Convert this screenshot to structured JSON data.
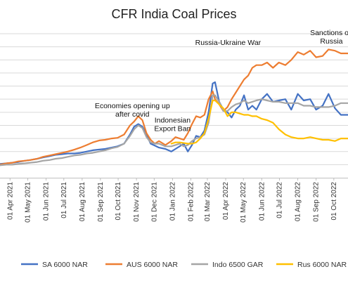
{
  "chart_data": {
    "type": "line",
    "title": "CFR India Coal Prices",
    "xlabel": "",
    "ylabel": "",
    "grid": true,
    "legend_position": "bottom",
    "x_range": [
      "2021-03-15",
      "2022-10-25"
    ],
    "x_tick_labels": [
      "01 Apr 2021",
      "01 May 2021",
      "01 Jun 2021",
      "01 Jul 2021",
      "01 Aug 2021",
      "01 Sep 2021",
      "01 Oct 2021",
      "01 Nov 2021",
      "01 Dec 2021",
      "01 Jan 2022",
      "01 Feb 2022",
      "01 Mar 2022",
      "01 Apr 2022",
      "01 May 2022",
      "01 Jun 2022",
      "01 Jul 2022",
      "01 Aug 2022",
      "01 Sep 2022",
      "01 Oct 2022"
    ],
    "x_tick_dates": [
      "2021-04-01",
      "2021-05-01",
      "2021-06-01",
      "2021-07-01",
      "2021-08-01",
      "2021-09-01",
      "2021-10-01",
      "2021-11-01",
      "2021-12-01",
      "2022-01-01",
      "2022-02-01",
      "2022-03-01",
      "2022-04-01",
      "2022-05-01",
      "2022-06-01",
      "2022-07-01",
      "2022-08-01",
      "2022-09-01",
      "2022-10-01"
    ],
    "ylim": [
      0,
      11
    ],
    "y_gridlines": [
      1,
      2,
      3,
      4,
      5,
      6,
      7,
      8,
      9,
      10,
      11
    ],
    "annotations": [
      {
        "lines": [
          "Economies opening up",
          "after covid"
        ],
        "x": "2021-10-25",
        "y": 5.3
      },
      {
        "lines": [
          "Indonesian",
          "Export Ban"
        ],
        "x": "2022-01-01",
        "y": 4.2
      },
      {
        "lines": [
          "Russia-Ukraine War"
        ],
        "x": "2022-04-05",
        "y": 10.15
      },
      {
        "lines": [
          "Sanctions on",
          "Russia"
        ],
        "x": "2022-09-27",
        "y": 10.9
      }
    ],
    "series": [
      {
        "name": "SA 6000 NAR",
        "color": "#4472C4",
        "points": [
          [
            "2021-03-15",
            1.05
          ],
          [
            "2021-03-26",
            1.1
          ],
          [
            "2021-04-05",
            1.15
          ],
          [
            "2021-04-15",
            1.2
          ],
          [
            "2021-04-26",
            1.3
          ],
          [
            "2021-05-05",
            1.35
          ],
          [
            "2021-05-17",
            1.45
          ],
          [
            "2021-05-27",
            1.55
          ],
          [
            "2021-06-07",
            1.65
          ],
          [
            "2021-06-17",
            1.75
          ],
          [
            "2021-06-28",
            1.8
          ],
          [
            "2021-07-08",
            1.85
          ],
          [
            "2021-07-19",
            1.85
          ],
          [
            "2021-07-29",
            1.9
          ],
          [
            "2021-08-09",
            2.0
          ],
          [
            "2021-08-19",
            2.1
          ],
          [
            "2021-08-30",
            2.15
          ],
          [
            "2021-09-09",
            2.2
          ],
          [
            "2021-09-20",
            2.3
          ],
          [
            "2021-09-30",
            2.4
          ],
          [
            "2021-10-11",
            2.6
          ],
          [
            "2021-10-21",
            3.3
          ],
          [
            "2021-10-28",
            3.9
          ],
          [
            "2021-11-04",
            4.1
          ],
          [
            "2021-11-11",
            3.9
          ],
          [
            "2021-11-18",
            3.3
          ],
          [
            "2021-11-25",
            2.6
          ],
          [
            "2021-12-02",
            2.45
          ],
          [
            "2021-12-09",
            2.3
          ],
          [
            "2021-12-20",
            2.2
          ],
          [
            "2021-12-30",
            2.0
          ],
          [
            "2022-01-06",
            2.2
          ],
          [
            "2022-01-13",
            2.4
          ],
          [
            "2022-01-20",
            2.6
          ],
          [
            "2022-01-27",
            2.0
          ],
          [
            "2022-02-03",
            2.5
          ],
          [
            "2022-02-10",
            3.2
          ],
          [
            "2022-02-17",
            3.1
          ],
          [
            "2022-02-24",
            3.6
          ],
          [
            "2022-03-03",
            5.0
          ],
          [
            "2022-03-10",
            7.2
          ],
          [
            "2022-03-14",
            7.3
          ],
          [
            "2022-03-21",
            5.8
          ],
          [
            "2022-03-28",
            5.2
          ],
          [
            "2022-04-04",
            5.0
          ],
          [
            "2022-04-11",
            4.6
          ],
          [
            "2022-04-18",
            5.2
          ],
          [
            "2022-04-25",
            5.5
          ],
          [
            "2022-05-02",
            6.3
          ],
          [
            "2022-05-09",
            5.2
          ],
          [
            "2022-05-16",
            5.5
          ],
          [
            "2022-05-23",
            5.2
          ],
          [
            "2022-06-01",
            6.0
          ],
          [
            "2022-06-10",
            6.4
          ],
          [
            "2022-06-20",
            5.8
          ],
          [
            "2022-06-30",
            5.9
          ],
          [
            "2022-07-11",
            6.0
          ],
          [
            "2022-07-21",
            5.2
          ],
          [
            "2022-08-01",
            6.4
          ],
          [
            "2022-08-11",
            5.9
          ],
          [
            "2022-08-22",
            6.0
          ],
          [
            "2022-09-01",
            5.2
          ],
          [
            "2022-09-12",
            5.5
          ],
          [
            "2022-09-22",
            6.4
          ],
          [
            "2022-10-03",
            5.3
          ],
          [
            "2022-10-13",
            4.8
          ],
          [
            "2022-10-25",
            4.8
          ]
        ]
      },
      {
        "name": "AUS 6000 NAR",
        "color": "#ED7D31",
        "points": [
          [
            "2021-03-15",
            1.0
          ],
          [
            "2021-03-26",
            1.1
          ],
          [
            "2021-04-05",
            1.15
          ],
          [
            "2021-04-15",
            1.25
          ],
          [
            "2021-04-26",
            1.3
          ],
          [
            "2021-05-05",
            1.35
          ],
          [
            "2021-05-17",
            1.45
          ],
          [
            "2021-05-27",
            1.6
          ],
          [
            "2021-06-07",
            1.7
          ],
          [
            "2021-06-17",
            1.8
          ],
          [
            "2021-06-28",
            1.9
          ],
          [
            "2021-07-08",
            2.0
          ],
          [
            "2021-07-19",
            2.15
          ],
          [
            "2021-07-29",
            2.3
          ],
          [
            "2021-08-09",
            2.5
          ],
          [
            "2021-08-19",
            2.7
          ],
          [
            "2021-08-30",
            2.85
          ],
          [
            "2021-09-09",
            2.9
          ],
          [
            "2021-09-20",
            3.0
          ],
          [
            "2021-09-30",
            3.05
          ],
          [
            "2021-10-11",
            3.3
          ],
          [
            "2021-10-21",
            4.0
          ],
          [
            "2021-10-28",
            4.3
          ],
          [
            "2021-11-04",
            4.7
          ],
          [
            "2021-11-11",
            4.4
          ],
          [
            "2021-11-18",
            3.4
          ],
          [
            "2021-11-25",
            2.9
          ],
          [
            "2021-12-02",
            2.6
          ],
          [
            "2021-12-09",
            2.8
          ],
          [
            "2021-12-20",
            2.5
          ],
          [
            "2021-12-30",
            2.8
          ],
          [
            "2022-01-06",
            3.1
          ],
          [
            "2022-01-13",
            3.0
          ],
          [
            "2022-01-20",
            2.9
          ],
          [
            "2022-01-27",
            3.4
          ],
          [
            "2022-02-03",
            4.1
          ],
          [
            "2022-02-10",
            4.7
          ],
          [
            "2022-02-17",
            4.6
          ],
          [
            "2022-02-24",
            4.8
          ],
          [
            "2022-03-03",
            6.0
          ],
          [
            "2022-03-10",
            6.6
          ],
          [
            "2022-03-14",
            6.0
          ],
          [
            "2022-03-21",
            5.6
          ],
          [
            "2022-03-28",
            5.1
          ],
          [
            "2022-04-04",
            5.4
          ],
          [
            "2022-04-11",
            6.0
          ],
          [
            "2022-04-18",
            6.5
          ],
          [
            "2022-04-25",
            7.0
          ],
          [
            "2022-05-02",
            7.5
          ],
          [
            "2022-05-09",
            7.8
          ],
          [
            "2022-05-16",
            8.4
          ],
          [
            "2022-05-23",
            8.6
          ],
          [
            "2022-06-01",
            8.6
          ],
          [
            "2022-06-10",
            8.8
          ],
          [
            "2022-06-20",
            8.4
          ],
          [
            "2022-06-30",
            8.8
          ],
          [
            "2022-07-11",
            8.6
          ],
          [
            "2022-07-21",
            9.0
          ],
          [
            "2022-08-01",
            9.6
          ],
          [
            "2022-08-11",
            9.4
          ],
          [
            "2022-08-22",
            9.7
          ],
          [
            "2022-09-01",
            9.2
          ],
          [
            "2022-09-12",
            9.3
          ],
          [
            "2022-09-22",
            9.8
          ],
          [
            "2022-10-03",
            9.7
          ],
          [
            "2022-10-13",
            9.5
          ],
          [
            "2022-10-25",
            9.5
          ]
        ]
      },
      {
        "name": "Indo 6500 GAR",
        "color": "#A5A5A5",
        "points": [
          [
            "2021-03-15",
            0.95
          ],
          [
            "2021-03-26",
            1.0
          ],
          [
            "2021-04-05",
            1.0
          ],
          [
            "2021-04-15",
            1.05
          ],
          [
            "2021-04-26",
            1.1
          ],
          [
            "2021-05-05",
            1.15
          ],
          [
            "2021-05-17",
            1.2
          ],
          [
            "2021-05-27",
            1.3
          ],
          [
            "2021-06-07",
            1.35
          ],
          [
            "2021-06-17",
            1.45
          ],
          [
            "2021-06-28",
            1.5
          ],
          [
            "2021-07-08",
            1.6
          ],
          [
            "2021-07-19",
            1.7
          ],
          [
            "2021-07-29",
            1.75
          ],
          [
            "2021-08-09",
            1.85
          ],
          [
            "2021-08-19",
            1.9
          ],
          [
            "2021-08-30",
            2.0
          ],
          [
            "2021-09-09",
            2.1
          ],
          [
            "2021-09-20",
            2.25
          ],
          [
            "2021-09-30",
            2.35
          ],
          [
            "2021-10-11",
            2.6
          ],
          [
            "2021-10-21",
            3.2
          ],
          [
            "2021-10-28",
            3.7
          ],
          [
            "2021-11-04",
            4.0
          ],
          [
            "2021-11-11",
            3.8
          ],
          [
            "2021-11-18",
            3.1
          ],
          [
            "2021-11-25",
            2.7
          ],
          [
            "2021-12-02",
            2.6
          ],
          [
            "2021-12-09",
            2.6
          ],
          [
            "2021-12-20",
            2.4
          ],
          [
            "2021-12-30",
            2.4
          ],
          [
            "2022-01-06",
            2.5
          ],
          [
            "2022-01-13",
            2.6
          ],
          [
            "2022-01-20",
            2.4
          ],
          [
            "2022-01-27",
            2.5
          ],
          [
            "2022-02-03",
            2.8
          ],
          [
            "2022-02-10",
            3.0
          ],
          [
            "2022-02-17",
            3.1
          ],
          [
            "2022-02-24",
            3.3
          ],
          [
            "2022-03-03",
            4.2
          ],
          [
            "2022-03-10",
            6.3
          ],
          [
            "2022-03-14",
            6.3
          ],
          [
            "2022-03-21",
            5.8
          ],
          [
            "2022-03-28",
            5.1
          ],
          [
            "2022-04-04",
            5.1
          ],
          [
            "2022-04-11",
            5.4
          ],
          [
            "2022-04-18",
            5.6
          ],
          [
            "2022-04-25",
            5.7
          ],
          [
            "2022-05-02",
            5.9
          ],
          [
            "2022-05-09",
            5.7
          ],
          [
            "2022-05-16",
            5.8
          ],
          [
            "2022-05-23",
            5.9
          ],
          [
            "2022-06-01",
            6.0
          ],
          [
            "2022-06-10",
            5.9
          ],
          [
            "2022-06-20",
            5.8
          ],
          [
            "2022-06-30",
            5.8
          ],
          [
            "2022-07-11",
            5.7
          ],
          [
            "2022-07-21",
            5.7
          ],
          [
            "2022-08-01",
            5.7
          ],
          [
            "2022-08-11",
            5.5
          ],
          [
            "2022-08-22",
            5.5
          ],
          [
            "2022-09-01",
            5.4
          ],
          [
            "2022-09-12",
            5.4
          ],
          [
            "2022-09-22",
            5.4
          ],
          [
            "2022-10-03",
            5.5
          ],
          [
            "2022-10-13",
            5.7
          ],
          [
            "2022-10-25",
            5.7
          ]
        ]
      },
      {
        "name": "Rus 6000 NAR",
        "color": "#FFC000",
        "points": [
          [
            "2021-12-30",
            2.6
          ],
          [
            "2022-01-06",
            2.7
          ],
          [
            "2022-01-13",
            2.7
          ],
          [
            "2022-01-20",
            2.65
          ],
          [
            "2022-01-27",
            2.6
          ],
          [
            "2022-02-03",
            2.6
          ],
          [
            "2022-02-10",
            2.7
          ],
          [
            "2022-02-17",
            3.0
          ],
          [
            "2022-02-24",
            3.4
          ],
          [
            "2022-03-03",
            4.5
          ],
          [
            "2022-03-10",
            5.9
          ],
          [
            "2022-03-14",
            5.9
          ],
          [
            "2022-03-21",
            5.6
          ],
          [
            "2022-03-28",
            5.3
          ],
          [
            "2022-04-04",
            4.7
          ],
          [
            "2022-04-11",
            5.0
          ],
          [
            "2022-04-18",
            5.0
          ],
          [
            "2022-04-25",
            4.9
          ],
          [
            "2022-05-02",
            4.8
          ],
          [
            "2022-05-09",
            4.8
          ],
          [
            "2022-05-16",
            4.7
          ],
          [
            "2022-05-23",
            4.7
          ],
          [
            "2022-06-01",
            4.5
          ],
          [
            "2022-06-10",
            4.4
          ],
          [
            "2022-06-20",
            4.2
          ],
          [
            "2022-06-30",
            3.7
          ],
          [
            "2022-07-11",
            3.3
          ],
          [
            "2022-07-21",
            3.1
          ],
          [
            "2022-08-01",
            3.0
          ],
          [
            "2022-08-11",
            3.0
          ],
          [
            "2022-08-22",
            3.1
          ],
          [
            "2022-09-01",
            3.0
          ],
          [
            "2022-09-12",
            2.9
          ],
          [
            "2022-09-22",
            2.9
          ],
          [
            "2022-10-03",
            2.8
          ],
          [
            "2022-10-13",
            3.0
          ],
          [
            "2022-10-25",
            3.0
          ]
        ]
      }
    ]
  }
}
